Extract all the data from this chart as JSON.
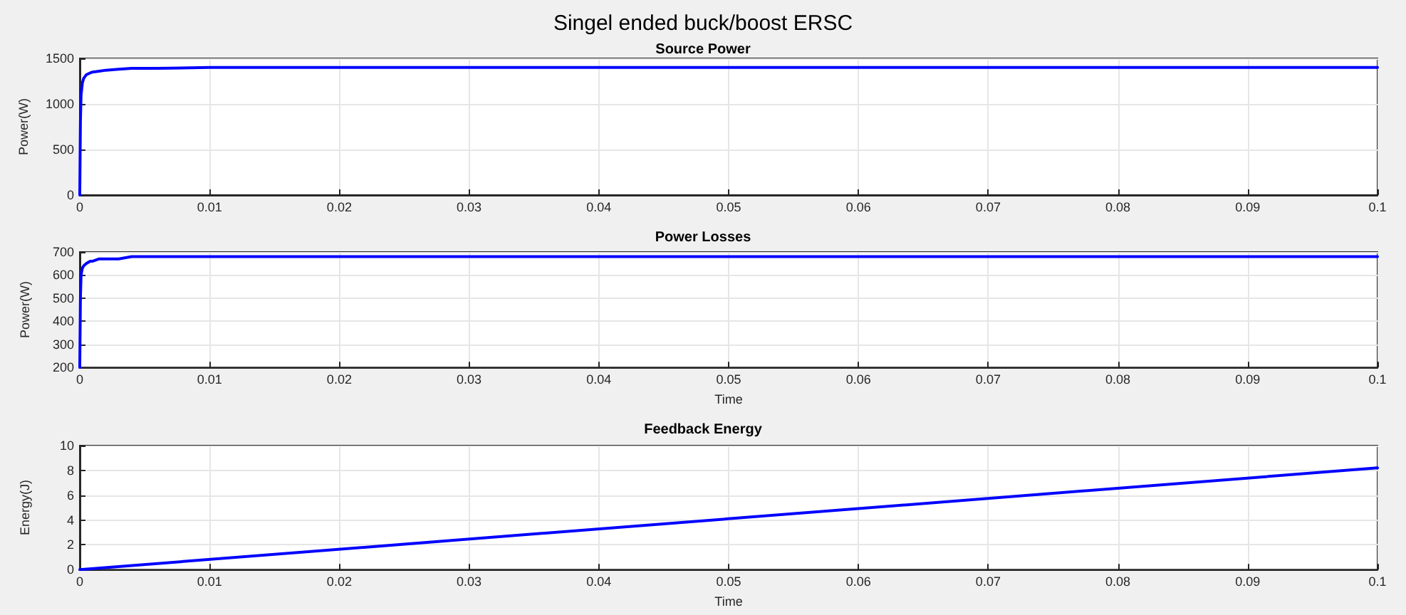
{
  "chart_data": [
    {
      "type": "line",
      "title": "Singel ended buck/boost ERSC",
      "subtitle": "Source Power",
      "ylabel": "Power(W)",
      "x": [
        0,
        5e-05,
        0.0001,
        0.0002,
        0.0003,
        0.0005,
        0.0008,
        0.001,
        0.0015,
        0.002,
        0.003,
        0.004,
        0.006,
        0.01,
        0.02,
        0.05,
        0.1
      ],
      "series": [
        {
          "color": "#0000ff",
          "values": [
            0,
            800,
            1100,
            1230,
            1280,
            1320,
            1340,
            1350,
            1360,
            1370,
            1380,
            1390,
            1390,
            1400,
            1400,
            1400,
            1400
          ]
        }
      ],
      "xlim": [
        0,
        0.1
      ],
      "xticks": [
        0,
        0.01,
        0.02,
        0.03,
        0.04,
        0.05,
        0.06,
        0.07,
        0.08,
        0.09,
        0.1
      ],
      "ylim": [
        0,
        1500
      ],
      "yticks": [
        0,
        500,
        1000,
        1500
      ],
      "grid": true,
      "marker": "none",
      "line_style": "solid"
    },
    {
      "type": "line",
      "title": "Power Losses",
      "xlabel": "Time",
      "ylabel": "Power(W)",
      "x": [
        0,
        5e-05,
        0.0001,
        0.0002,
        0.0003,
        0.0005,
        0.0008,
        0.001,
        0.0015,
        0.002,
        0.003,
        0.004,
        0.006,
        0.01,
        0.02,
        0.05,
        0.1
      ],
      "series": [
        {
          "color": "#0000ff",
          "values": [
            200,
            500,
            600,
            630,
            640,
            650,
            660,
            660,
            670,
            670,
            670,
            680,
            680,
            680,
            680,
            680,
            680
          ]
        }
      ],
      "xlim": [
        0,
        0.1
      ],
      "xticks": [
        0,
        0.01,
        0.02,
        0.03,
        0.04,
        0.05,
        0.06,
        0.07,
        0.08,
        0.09,
        0.1
      ],
      "ylim": [
        200,
        700
      ],
      "yticks": [
        200,
        300,
        400,
        500,
        600,
        700
      ],
      "grid": true,
      "marker": "none",
      "line_style": "solid"
    },
    {
      "type": "line",
      "title": "Feedback Energy",
      "xlabel": "Time",
      "ylabel": "Energy(J)",
      "x": [
        0,
        0.1
      ],
      "series": [
        {
          "color": "#0000ff",
          "values": [
            0,
            8.2
          ]
        }
      ],
      "xlim": [
        0,
        0.1
      ],
      "xticks": [
        0,
        0.01,
        0.02,
        0.03,
        0.04,
        0.05,
        0.06,
        0.07,
        0.08,
        0.09,
        0.1
      ],
      "ylim": [
        0,
        10
      ],
      "yticks": [
        0,
        2,
        4,
        6,
        8,
        10
      ],
      "grid": true,
      "marker": "none",
      "line_style": "solid"
    }
  ]
}
